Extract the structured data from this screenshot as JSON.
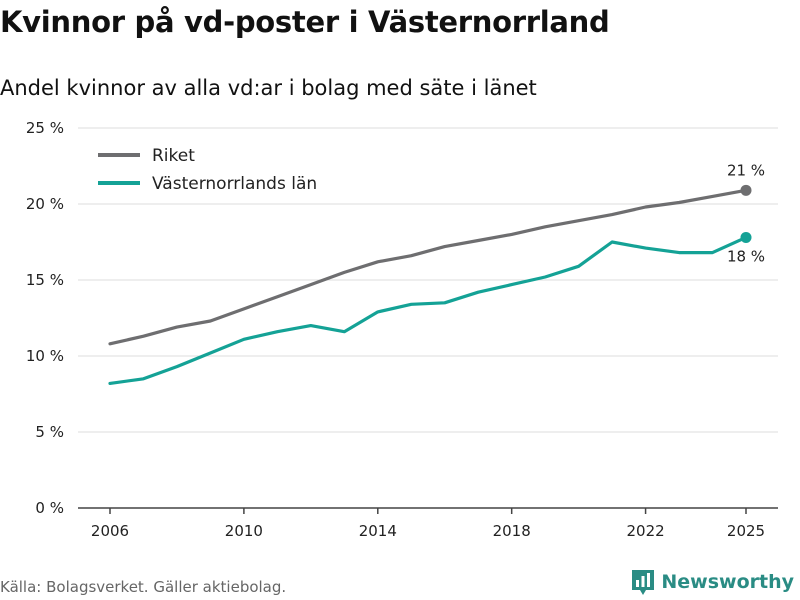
{
  "title": "Kvinnor på vd-poster i Västernorrland",
  "subtitle": "Andel kvinnor av alla vd:ar i bolag med säte i länet",
  "source": "Källa: Bolagsverket. Gäller aktiebolag.",
  "brand": "Newsworthy",
  "colors": {
    "riket": "#6e6e70",
    "lan": "#14a296",
    "grid": "#dddddd",
    "axis": "#444444",
    "brand": "#2a8c84"
  },
  "chart_data": {
    "type": "line",
    "x": [
      2006,
      2007,
      2008,
      2009,
      2010,
      2011,
      2012,
      2013,
      2014,
      2015,
      2016,
      2017,
      2018,
      2019,
      2020,
      2021,
      2022,
      2023,
      2024,
      2025
    ],
    "series": [
      {
        "name": "Riket",
        "values": [
          10.8,
          11.3,
          11.9,
          12.3,
          13.1,
          13.9,
          14.7,
          15.5,
          16.2,
          16.6,
          17.2,
          17.6,
          18.0,
          18.5,
          18.9,
          19.3,
          19.8,
          20.1,
          20.5,
          20.9
        ],
        "end_label": "21 %"
      },
      {
        "name": "Västernorrlands län",
        "values": [
          8.2,
          8.5,
          9.3,
          10.2,
          11.1,
          11.6,
          12.0,
          11.6,
          12.9,
          13.4,
          13.5,
          14.2,
          14.7,
          15.2,
          15.9,
          17.5,
          17.1,
          16.8,
          16.8,
          17.8
        ],
        "end_label": "18 %"
      }
    ],
    "xticks": [
      2006,
      2010,
      2014,
      2018,
      2022,
      2025
    ],
    "xtick_labels": [
      "2006",
      "2010",
      "2014",
      "2018",
      "2022",
      "2025"
    ],
    "yticks": [
      0,
      5,
      10,
      15,
      20,
      25
    ],
    "ytick_labels": [
      "0 %",
      "5 %",
      "10 %",
      "15 %",
      "20 %",
      "25 %"
    ],
    "ylim": [
      0,
      25
    ],
    "xlim": [
      2006,
      2025
    ],
    "grid": true,
    "legend_position": "top-left"
  }
}
